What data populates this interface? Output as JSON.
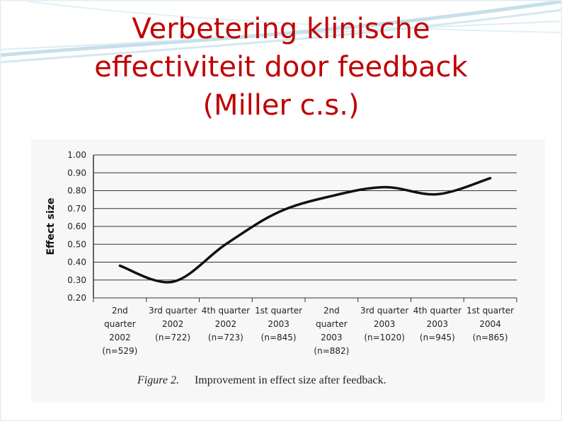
{
  "title": {
    "line1": "Verbetering klinische",
    "line2": "effectiviteit door feedback",
    "line3": "(Miller c.s.)"
  },
  "colors": {
    "title": "#c00000",
    "line": "#111111",
    "grid": "#333333"
  },
  "caption": {
    "figure_label": "Figure 2.",
    "text": "Improvement in effect size after feedback."
  },
  "chart_data": {
    "type": "line",
    "title": "",
    "ylabel": "Effect size",
    "xlabel": "",
    "ylim": [
      0.2,
      1.0
    ],
    "yticks": [
      "0.20",
      "0.30",
      "0.40",
      "0.50",
      "0.60",
      "0.70",
      "0.80",
      "0.90",
      "1.00"
    ],
    "grid": true,
    "categories": [
      [
        "2nd",
        "quarter",
        "2002",
        "(n=529)"
      ],
      [
        "3rd quarter",
        "2002",
        "(n=722)"
      ],
      [
        "4th quarter",
        "2002",
        "(n=723)"
      ],
      [
        "1st quarter",
        "2003",
        "(n=845)"
      ],
      [
        "2nd",
        "quarter",
        "2003",
        "(n=882)"
      ],
      [
        "3rd quarter",
        "2003",
        "(n=1020)"
      ],
      [
        "4th quarter",
        "2003",
        "(n=945)"
      ],
      [
        "1st quarter",
        "2004",
        "(n=865)"
      ]
    ],
    "series": [
      {
        "values": [
          0.38,
          0.29,
          0.5,
          0.68,
          0.77,
          0.82,
          0.78,
          0.87
        ]
      }
    ]
  }
}
